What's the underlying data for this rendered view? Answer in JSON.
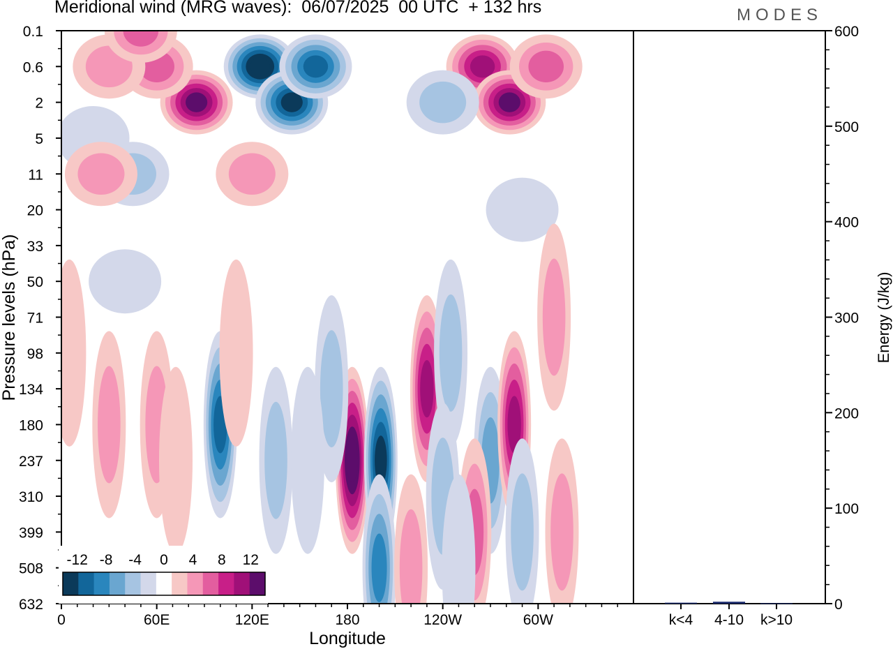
{
  "title": "Meridional wind (MRG waves):  06/07/2025  00 UTC  + 132 hrs",
  "logo": "MODES",
  "colors": {
    "neg": [
      "#0b3a5a",
      "#12669a",
      "#2a86bd",
      "#6aa6d0",
      "#a6c4e2",
      "#d3d8ea"
    ],
    "pos": [
      "#f7c8c6",
      "#f597b7",
      "#e35e9f",
      "#c81f88",
      "#a01078",
      "#5c0d6b"
    ]
  },
  "chart_data": [
    {
      "type": "heatmap",
      "title": "Meridional wind (MRG waves)",
      "xlabel": "Longitude",
      "ylabel": "Pressure levels (hPa)",
      "x_ticks": [
        "0",
        "60E",
        "120E",
        "180",
        "120W",
        "60W"
      ],
      "y_ticks": [
        "0.1",
        "0.6",
        "2",
        "5",
        "11",
        "20",
        "33",
        "50",
        "71",
        "98",
        "134",
        "180",
        "237",
        "310",
        "399",
        "508",
        "632"
      ],
      "colorbar": {
        "tick_labels": [
          "-12",
          "-8",
          "-4",
          "0",
          "4",
          "8",
          "12"
        ],
        "levels": [
          -14,
          -12,
          -10,
          -8,
          -6,
          -4,
          -2,
          2,
          4,
          6,
          8,
          10,
          12,
          14
        ]
      },
      "features": [
        {
          "lon": 85,
          "level": "2",
          "value": 13
        },
        {
          "lon": 60,
          "level": "0.6",
          "value": 6
        },
        {
          "lon": 30,
          "level": "0.6",
          "value": 4
        },
        {
          "lon": 50,
          "level": "0.1",
          "value": 6
        },
        {
          "lon": 125,
          "level": "0.6",
          "value": -14
        },
        {
          "lon": 145,
          "level": "2",
          "value": -12
        },
        {
          "lon": 160,
          "level": "0.6",
          "value": -10
        },
        {
          "lon": 20,
          "level": "5",
          "value": -3
        },
        {
          "lon": 45,
          "level": "11",
          "value": -4
        },
        {
          "lon": 120,
          "level": "11",
          "value": 5
        },
        {
          "lon": 265,
          "level": "0.6",
          "value": 10
        },
        {
          "lon": 282,
          "level": "2",
          "value": 13
        },
        {
          "lon": 240,
          "level": "2",
          "value": -4
        },
        {
          "lon": 305,
          "level": "0.6",
          "value": 6
        },
        {
          "lon": 290,
          "level": "20",
          "value": -2
        },
        {
          "lon": 25,
          "level": "11",
          "value": 4
        },
        {
          "lon": 5,
          "level": "98",
          "value": 3
        },
        {
          "lon": 40,
          "level": "50",
          "value": -2
        },
        {
          "lon": 310,
          "level": "71",
          "value": 4
        },
        {
          "lon": 183,
          "level": "237",
          "value": 14
        },
        {
          "lon": 201,
          "level": "237",
          "value": -12
        },
        {
          "lon": 200,
          "level": "508",
          "value": -8
        },
        {
          "lon": 100,
          "level": "180",
          "value": -10
        },
        {
          "lon": 60,
          "level": "180",
          "value": 4
        },
        {
          "lon": 30,
          "level": "180",
          "value": 4
        },
        {
          "lon": 230,
          "level": "134",
          "value": 10
        },
        {
          "lon": 245,
          "level": "98",
          "value": -4
        },
        {
          "lon": 270,
          "level": "237",
          "value": -6
        },
        {
          "lon": 285,
          "level": "180",
          "value": 10
        },
        {
          "lon": 260,
          "level": "399",
          "value": 6
        },
        {
          "lon": 170,
          "level": "134",
          "value": -4
        },
        {
          "lon": 135,
          "level": "237",
          "value": -4
        },
        {
          "lon": 155,
          "level": "237",
          "value": -3
        },
        {
          "lon": 290,
          "level": "399",
          "value": -4
        },
        {
          "lon": 315,
          "level": "399",
          "value": 4
        },
        {
          "lon": 220,
          "level": "508",
          "value": 4
        },
        {
          "lon": 240,
          "level": "310",
          "value": -4
        },
        {
          "lon": 250,
          "level": "508",
          "value": -3
        },
        {
          "lon": 72,
          "level": "237",
          "value": 3
        },
        {
          "lon": 110,
          "level": "98",
          "value": 3
        }
      ]
    },
    {
      "type": "bar",
      "ylabel": "Energy (J/kg)",
      "categories": [
        "k<4",
        "4-10",
        "k>10"
      ],
      "values": [
        1,
        2,
        0.5
      ],
      "ylim": [
        0,
        600
      ],
      "y_ticks": [
        "0",
        "100",
        "200",
        "300",
        "400",
        "500",
        "600"
      ],
      "bar_color": "#1a2a6c"
    }
  ]
}
